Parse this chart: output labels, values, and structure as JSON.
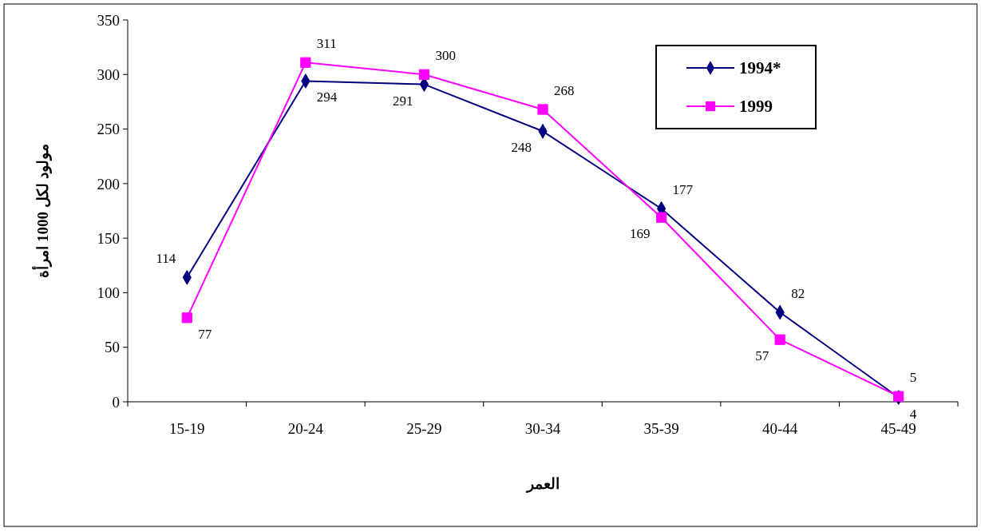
{
  "chart_data": {
    "type": "line",
    "xlabel": "العمر",
    "ylabel": "مولود لكل 1000 امرأة",
    "categories": [
      "15-19",
      "20-24",
      "25-29",
      "30-34",
      "35-39",
      "40-44",
      "45-49"
    ],
    "series": [
      {
        "name": "1994*",
        "color": "#000080",
        "marker": "diamond",
        "values": [
          114,
          294,
          291,
          248,
          177,
          82,
          4
        ]
      },
      {
        "name": "1999",
        "color": "#ff00ff",
        "marker": "square",
        "values": [
          77,
          311,
          300,
          268,
          169,
          57,
          5
        ]
      }
    ],
    "ylim": [
      0,
      350
    ],
    "yticks": [
      0,
      50,
      100,
      150,
      200,
      250,
      300,
      350
    ],
    "data_labels": true,
    "legend": "top right",
    "grid": false
  }
}
